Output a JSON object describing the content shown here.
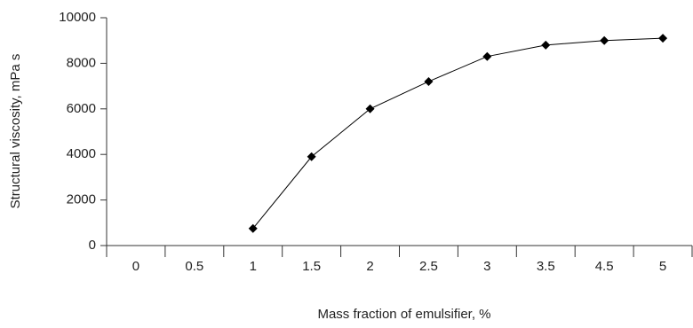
{
  "chart_data": {
    "type": "line",
    "x_label": "Mass fraction of emulsifier, %",
    "y_label": "Structural viscosity, mPa s",
    "categories": [
      "0",
      "0.5",
      "1",
      "1.5",
      "2",
      "2.5",
      "3",
      "3.5",
      "4.5",
      "5"
    ],
    "values": [
      null,
      null,
      750,
      3900,
      6000,
      7200,
      8300,
      8800,
      9000,
      9100
    ],
    "color": "#000000",
    "marker": "diamond",
    "ylim": [
      0,
      10000
    ],
    "yticks": [
      0,
      2000,
      4000,
      6000,
      8000,
      10000
    ],
    "grid": false
  }
}
